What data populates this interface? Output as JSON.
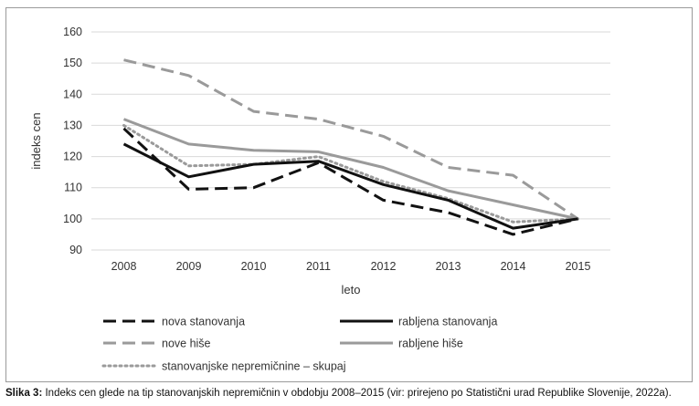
{
  "chart_data": {
    "type": "line",
    "xlabel": "leto",
    "ylabel": "indeks cen",
    "x": [
      2008,
      2009,
      2010,
      2011,
      2012,
      2013,
      2014,
      2015
    ],
    "ylim": [
      90,
      160
    ],
    "yticks": [
      90,
      100,
      110,
      120,
      130,
      140,
      150,
      160
    ],
    "grid": true,
    "legend_position": "bottom",
    "series": [
      {
        "name": "nova stanovanja",
        "style": "dashed",
        "color": "#111111",
        "values": [
          129,
          109.5,
          110,
          118,
          106,
          102,
          95,
          100
        ]
      },
      {
        "name": "rabljena stanovanja",
        "style": "solid",
        "color": "#111111",
        "values": [
          124,
          113.5,
          117.5,
          118.5,
          111,
          106,
          97,
          100
        ]
      },
      {
        "name": "nove hiše",
        "style": "dashed",
        "color": "#9a9a9a",
        "values": [
          151,
          146,
          134.5,
          132,
          126.5,
          116.5,
          114,
          100
        ]
      },
      {
        "name": "rabljene hiše",
        "style": "solid",
        "color": "#9a9a9a",
        "values": [
          132,
          124,
          122,
          121.5,
          116.5,
          109,
          104.5,
          100
        ]
      },
      {
        "name": "stanovanjske nepremičnine – skupaj",
        "style": "dotted",
        "color": "#9a9a9a",
        "values": [
          130,
          117,
          117.5,
          120,
          112,
          106.5,
          99,
          100
        ]
      }
    ]
  },
  "caption": {
    "label": "Slika 3:",
    "text": " Indeks cen glede na tip stanovanjskih nepremičnin v obdobju 2008–2015 (vir: prirejeno po Statistični urad Republike Slovenije, 2022a)."
  }
}
